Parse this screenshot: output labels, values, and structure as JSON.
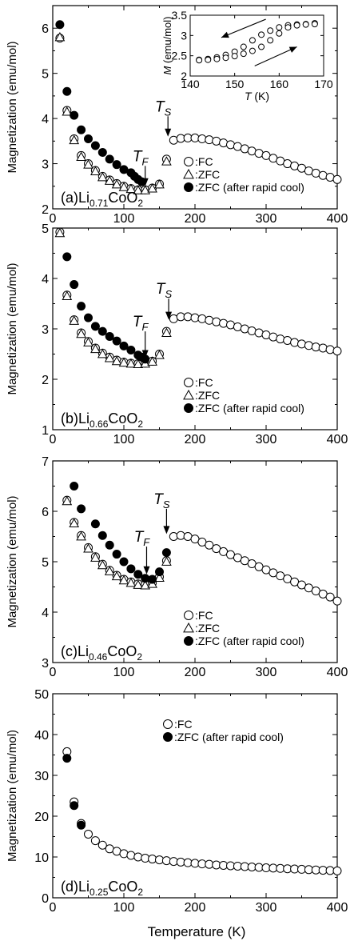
{
  "xlabel": "Temperature (K)",
  "ylabel": "Magnetization (emu/mol)",
  "colors": {
    "ink": "#000000",
    "open_fill": "#ffffff"
  },
  "chart_data": [
    {
      "type": "scatter",
      "panel_label": "(a)",
      "formula": {
        "prefix": "Li",
        "sub": "0.71",
        "suffix": "CoO",
        "sub2": "2"
      },
      "xlim": [
        0,
        400
      ],
      "ylim": [
        2,
        6.5
      ],
      "xticks": [
        "0",
        "100",
        "200",
        "300",
        "400"
      ],
      "yticks": [
        "2",
        "3",
        "4",
        "5",
        "6"
      ],
      "legend": [
        "FC",
        "ZFC",
        "ZFC (after rapid cool)"
      ],
      "markers": [
        "open-circle",
        "open-triangle",
        "filled-circle"
      ],
      "annotations": [
        {
          "label": "T",
          "sub": "F",
          "x": 130,
          "arrow_from": 2.95,
          "arrow_to": 2.5
        },
        {
          "label": "T",
          "sub": "S",
          "x": 162,
          "arrow_from": 4.05,
          "arrow_to": 3.6
        }
      ],
      "series": [
        {
          "name": "FC",
          "marker": "open-circle",
          "x": [
            10,
            20,
            30,
            40,
            50,
            60,
            70,
            80,
            90,
            100,
            110,
            120,
            130,
            140,
            150,
            160,
            170,
            180,
            190,
            200,
            210,
            220,
            230,
            240,
            250,
            260,
            270,
            280,
            290,
            300,
            310,
            320,
            330,
            340,
            350,
            360,
            370,
            380,
            390,
            400
          ],
          "y": [
            5.78,
            4.18,
            3.55,
            3.18,
            3.0,
            2.85,
            2.72,
            2.64,
            2.56,
            2.5,
            2.45,
            2.42,
            2.42,
            2.46,
            2.55,
            3.1,
            3.52,
            3.56,
            3.57,
            3.57,
            3.55,
            3.53,
            3.5,
            3.46,
            3.42,
            3.38,
            3.33,
            3.28,
            3.23,
            3.18,
            3.12,
            3.06,
            3.0,
            2.95,
            2.9,
            2.84,
            2.79,
            2.74,
            2.7,
            2.65
          ]
        },
        {
          "name": "ZFC",
          "marker": "open-triangle",
          "x": [
            10,
            20,
            30,
            40,
            50,
            60,
            70,
            80,
            90,
            100,
            110,
            120,
            130,
            140,
            150,
            160
          ],
          "y": [
            5.8,
            4.15,
            3.52,
            3.15,
            2.98,
            2.83,
            2.7,
            2.62,
            2.54,
            2.48,
            2.44,
            2.41,
            2.41,
            2.45,
            2.54,
            3.05
          ]
        },
        {
          "name": "ZFC (after rapid cool)",
          "marker": "filled-circle",
          "x": [
            10,
            20,
            30,
            40,
            50,
            60,
            70,
            80,
            90,
            100,
            110,
            115,
            120,
            125
          ],
          "y": [
            6.08,
            4.6,
            4.07,
            3.75,
            3.55,
            3.4,
            3.25,
            3.1,
            2.98,
            2.87,
            2.8,
            2.72,
            2.65,
            2.6
          ]
        }
      ],
      "inset": {
        "xlabel": "T",
        "xunit": "(K)",
        "ylabel": "M",
        "yunit": "(emu/mol)",
        "xlim": [
          140,
          170
        ],
        "ylim": [
          2,
          3.5
        ],
        "xticks": [
          "140",
          "150",
          "160",
          "170"
        ],
        "yticks": [
          "2",
          "2.5",
          "3",
          "3.5"
        ],
        "series": [
          {
            "name": "cooling",
            "marker": "open-circle",
            "x": [
              142,
              144,
              146,
              148,
              150,
              152,
              154,
              156,
              158,
              160,
              162,
              164,
              166,
              168
            ],
            "y": [
              2.4,
              2.42,
              2.46,
              2.52,
              2.6,
              2.72,
              2.88,
              3.02,
              3.12,
              3.2,
              3.25,
              3.27,
              3.28,
              3.3
            ]
          },
          {
            "name": "heating",
            "marker": "open-circle",
            "x": [
              142,
              144,
              146,
              148,
              150,
              152,
              154,
              156,
              158,
              160,
              162,
              164,
              166,
              168
            ],
            "y": [
              2.39,
              2.4,
              2.42,
              2.45,
              2.49,
              2.55,
              2.62,
              2.72,
              2.88,
              3.05,
              3.2,
              3.25,
              3.27,
              3.28
            ]
          }
        ]
      }
    },
    {
      "type": "scatter",
      "panel_label": "(b)",
      "formula": {
        "prefix": "Li",
        "sub": "0.66",
        "suffix": "CoO",
        "sub2": "2"
      },
      "xlim": [
        0,
        400
      ],
      "ylim": [
        1,
        5
      ],
      "xticks": [
        "0",
        "100",
        "200",
        "300",
        "400"
      ],
      "yticks": [
        "1",
        "2",
        "3",
        "4",
        "5"
      ],
      "legend": [
        "FC",
        "ZFC",
        "ZFC (after rapid cool)"
      ],
      "markers": [
        "open-circle",
        "open-triangle",
        "filled-circle"
      ],
      "annotations": [
        {
          "label": "T",
          "sub": "F",
          "x": 130,
          "arrow_from": 2.95,
          "arrow_to": 2.42
        },
        {
          "label": "T",
          "sub": "S",
          "x": 163,
          "arrow_from": 3.6,
          "arrow_to": 3.18
        }
      ],
      "series": [
        {
          "name": "FC",
          "marker": "open-circle",
          "x": [
            10,
            20,
            30,
            40,
            50,
            60,
            70,
            80,
            90,
            100,
            110,
            120,
            130,
            140,
            150,
            160,
            170,
            180,
            190,
            200,
            210,
            220,
            230,
            240,
            250,
            260,
            270,
            280,
            290,
            300,
            310,
            320,
            330,
            340,
            350,
            360,
            370,
            380,
            390,
            400
          ],
          "y": [
            4.92,
            3.67,
            3.18,
            2.92,
            2.75,
            2.62,
            2.52,
            2.44,
            2.38,
            2.34,
            2.32,
            2.31,
            2.32,
            2.36,
            2.5,
            2.95,
            3.2,
            3.24,
            3.24,
            3.22,
            3.2,
            3.17,
            3.14,
            3.11,
            3.08,
            3.04,
            3.0,
            2.96,
            2.92,
            2.88,
            2.84,
            2.8,
            2.77,
            2.73,
            2.7,
            2.67,
            2.64,
            2.62,
            2.59,
            2.56
          ]
        },
        {
          "name": "ZFC",
          "marker": "open-triangle",
          "x": [
            10,
            20,
            30,
            40,
            50,
            60,
            70,
            80,
            90,
            100,
            110,
            120,
            130,
            140,
            150,
            160
          ],
          "y": [
            4.9,
            3.65,
            3.16,
            2.9,
            2.73,
            2.6,
            2.5,
            2.42,
            2.36,
            2.33,
            2.31,
            2.3,
            2.31,
            2.35,
            2.48,
            2.92
          ]
        },
        {
          "name": "ZFC (after rapid cool)",
          "marker": "filled-circle",
          "x": [
            20,
            30,
            40,
            50,
            60,
            70,
            80,
            90,
            100,
            110,
            120,
            125,
            130
          ],
          "y": [
            4.43,
            3.88,
            3.45,
            3.22,
            3.05,
            2.95,
            2.85,
            2.76,
            2.66,
            2.58,
            2.48,
            2.44,
            2.4
          ]
        }
      ]
    },
    {
      "type": "scatter",
      "panel_label": "(c)",
      "formula": {
        "prefix": "Li",
        "sub": "0.46",
        "suffix": "CoO",
        "sub2": "2"
      },
      "xlim": [
        0,
        400
      ],
      "ylim": [
        3,
        7
      ],
      "xticks": [
        "0",
        "100",
        "200",
        "300",
        "400"
      ],
      "yticks": [
        "3",
        "4",
        "5",
        "6",
        "7"
      ],
      "legend": [
        "FC",
        "ZFC",
        "ZFC (after rapid cool)"
      ],
      "markers": [
        "open-circle",
        "open-triangle",
        "filled-circle"
      ],
      "annotations": [
        {
          "label": "T",
          "sub": "F",
          "x": 132,
          "arrow_from": 5.3,
          "arrow_to": 4.75
        },
        {
          "label": "T",
          "sub": "S",
          "x": 160,
          "arrow_from": 6.05,
          "arrow_to": 5.55
        }
      ],
      "series": [
        {
          "name": "FC",
          "marker": "open-circle",
          "x": [
            20,
            30,
            40,
            50,
            60,
            70,
            80,
            90,
            100,
            110,
            120,
            130,
            140,
            150,
            160,
            170,
            180,
            190,
            200,
            210,
            220,
            230,
            240,
            250,
            260,
            270,
            280,
            290,
            300,
            310,
            320,
            330,
            340,
            350,
            360,
            370,
            380,
            390,
            400
          ],
          "y": [
            6.22,
            5.78,
            5.52,
            5.28,
            5.1,
            4.95,
            4.83,
            4.73,
            4.65,
            4.6,
            4.56,
            4.55,
            4.58,
            4.7,
            5.02,
            5.5,
            5.52,
            5.5,
            5.45,
            5.39,
            5.33,
            5.26,
            5.2,
            5.14,
            5.08,
            5.02,
            4.96,
            4.9,
            4.84,
            4.78,
            4.72,
            4.66,
            4.6,
            4.54,
            4.48,
            4.42,
            4.36,
            4.3,
            4.22
          ]
        },
        {
          "name": "ZFC",
          "marker": "open-triangle",
          "x": [
            20,
            30,
            40,
            50,
            60,
            70,
            80,
            90,
            100,
            110,
            120,
            130,
            140,
            150,
            160
          ],
          "y": [
            6.2,
            5.76,
            5.5,
            5.26,
            5.08,
            4.93,
            4.81,
            4.71,
            4.63,
            4.58,
            4.54,
            4.53,
            4.56,
            4.68,
            5.0
          ]
        },
        {
          "name": "ZFC (after rapid cool)",
          "marker": "filled-circle",
          "x": [
            30,
            40,
            60,
            70,
            80,
            90,
            100,
            110,
            120,
            130,
            140,
            150,
            160
          ],
          "y": [
            6.5,
            6.05,
            5.75,
            5.52,
            5.33,
            5.15,
            5.0,
            4.86,
            4.75,
            4.67,
            4.65,
            4.8,
            5.18
          ]
        }
      ]
    },
    {
      "type": "scatter",
      "panel_label": "(d)",
      "formula": {
        "prefix": "Li",
        "sub": "0.25",
        "suffix": "CoO",
        "sub2": "2"
      },
      "xlim": [
        0,
        400
      ],
      "ylim": [
        0,
        50
      ],
      "xticks": [
        "0",
        "100",
        "200",
        "300",
        "400"
      ],
      "yticks": [
        "0",
        "10",
        "20",
        "30",
        "40",
        "50"
      ],
      "legend": [
        "FC",
        "ZFC (after rapid cool)"
      ],
      "markers": [
        "open-circle",
        "filled-circle"
      ],
      "annotations": [],
      "series": [
        {
          "name": "FC",
          "marker": "open-circle",
          "x": [
            20,
            30,
            40,
            50,
            60,
            70,
            80,
            90,
            100,
            110,
            120,
            130,
            140,
            150,
            160,
            170,
            180,
            190,
            200,
            210,
            220,
            230,
            240,
            250,
            260,
            270,
            280,
            290,
            300,
            310,
            320,
            330,
            340,
            350,
            360,
            370,
            380,
            390,
            400
          ],
          "y": [
            35.8,
            23.5,
            18.2,
            15.6,
            14.0,
            12.9,
            12.0,
            11.4,
            10.8,
            10.4,
            10.0,
            9.7,
            9.5,
            9.3,
            9.1,
            8.9,
            8.75,
            8.6,
            8.45,
            8.3,
            8.2,
            8.05,
            7.95,
            7.85,
            7.75,
            7.65,
            7.55,
            7.45,
            7.35,
            7.28,
            7.2,
            7.12,
            7.05,
            6.98,
            6.9,
            6.82,
            6.75,
            6.68,
            6.6
          ]
        },
        {
          "name": "ZFC (after rapid cool)",
          "marker": "filled-circle",
          "x": [
            20,
            30,
            40
          ],
          "y": [
            34.2,
            22.6,
            17.8
          ]
        }
      ]
    }
  ]
}
